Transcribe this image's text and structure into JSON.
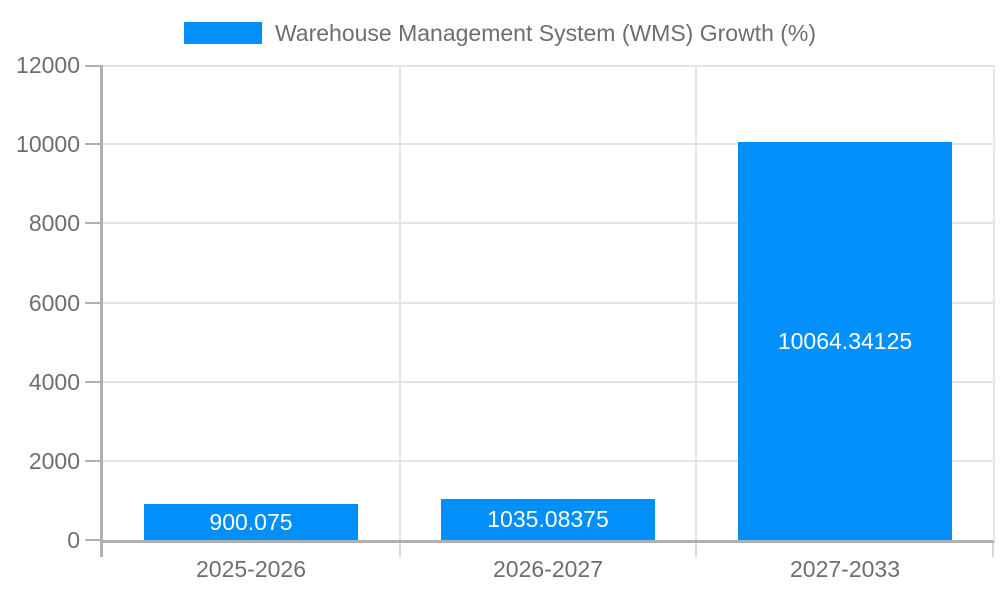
{
  "legend": {
    "label": "Warehouse Management System (WMS) Growth (%)"
  },
  "chart_data": {
    "type": "bar",
    "title": "Warehouse Management System (WMS) Growth (%)",
    "categories": [
      "2025-2026",
      "2026-2027",
      "2027-2033"
    ],
    "series": [
      {
        "name": "Warehouse Management System (WMS) Growth (%)",
        "values": [
          900.075,
          1035.08375,
          10064.34125
        ]
      }
    ],
    "data_labels": [
      "900.075",
      "1035.08375",
      "10064.34125"
    ],
    "xlabel": "",
    "ylabel": "",
    "ylim": [
      0,
      12000
    ],
    "yticks": [
      0,
      2000,
      4000,
      6000,
      8000,
      10000,
      12000
    ],
    "grid": true,
    "legend_position": "top"
  },
  "colors": {
    "accent": "#008FFB",
    "bar": "#008FFB",
    "bar_label_text": "#ffffff",
    "axis_text": "#6e6e6e",
    "gridline": "#e4e4e4",
    "axis_line": "#b0b0b0",
    "background": "#ffffff"
  }
}
